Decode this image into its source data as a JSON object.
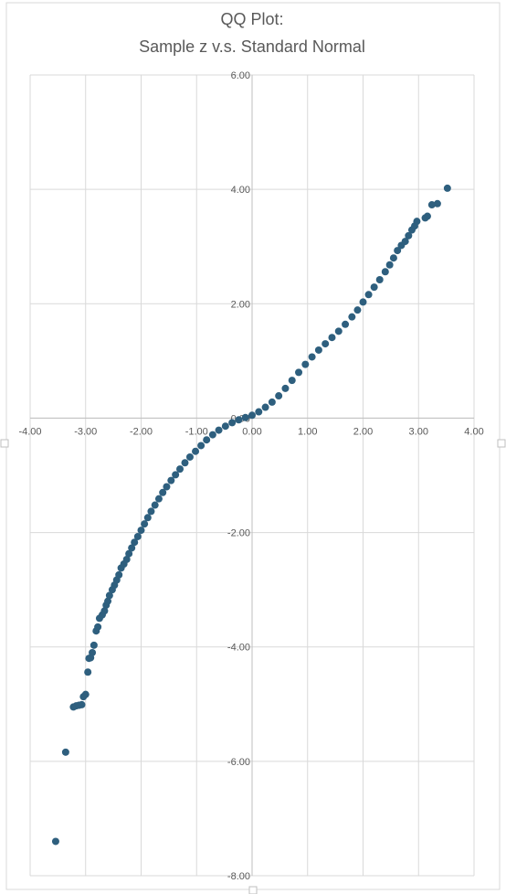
{
  "chart_data": {
    "type": "scatter",
    "title_lines": [
      "QQ Plot:",
      "Sample z v.s. Standard Normal"
    ],
    "xlabel": "",
    "ylabel": "",
    "xlim": [
      -4,
      4
    ],
    "ylim": [
      -8,
      6
    ],
    "x_ticks": [
      -4,
      -3,
      -2,
      -1,
      0,
      1,
      2,
      3,
      4
    ],
    "y_ticks": [
      -8,
      -6,
      -4,
      -2,
      0,
      2,
      4,
      6
    ],
    "x_tick_labels": [
      "-4.00",
      "-3.00",
      "-2.00",
      "-1.00",
      "0.00",
      "1.00",
      "2.00",
      "3.00",
      "4.00"
    ],
    "y_tick_labels": [
      "-8.00",
      "-6.00",
      "-4.00",
      "-2.00",
      "0.00",
      "2.00",
      "4.00",
      "6.00"
    ],
    "grid": true,
    "legend": "none",
    "series_color": "#2e5f7e",
    "points": [
      [
        -3.54,
        -7.4
      ],
      [
        -3.36,
        -5.84
      ],
      [
        -3.22,
        -5.05
      ],
      [
        -3.17,
        -5.03
      ],
      [
        -3.12,
        -5.02
      ],
      [
        -3.07,
        -5.01
      ],
      [
        -3.04,
        -4.87
      ],
      [
        -3.0,
        -4.83
      ],
      [
        -2.96,
        -4.44
      ],
      [
        -2.94,
        -4.2
      ],
      [
        -2.91,
        -4.19
      ],
      [
        -2.88,
        -4.1
      ],
      [
        -2.85,
        -3.97
      ],
      [
        -2.81,
        -3.72
      ],
      [
        -2.78,
        -3.65
      ],
      [
        -2.75,
        -3.5
      ],
      [
        -2.7,
        -3.44
      ],
      [
        -2.66,
        -3.37
      ],
      [
        -2.63,
        -3.27
      ],
      [
        -2.6,
        -3.2
      ],
      [
        -2.57,
        -3.1
      ],
      [
        -2.52,
        -3.0
      ],
      [
        -2.48,
        -2.92
      ],
      [
        -2.44,
        -2.83
      ],
      [
        -2.4,
        -2.74
      ],
      [
        -2.36,
        -2.62
      ],
      [
        -2.31,
        -2.55
      ],
      [
        -2.26,
        -2.47
      ],
      [
        -2.22,
        -2.37
      ],
      [
        -2.17,
        -2.27
      ],
      [
        -2.12,
        -2.17
      ],
      [
        -2.06,
        -2.07
      ],
      [
        -2.0,
        -1.96
      ],
      [
        -1.94,
        -1.85
      ],
      [
        -1.88,
        -1.74
      ],
      [
        -1.82,
        -1.63
      ],
      [
        -1.75,
        -1.52
      ],
      [
        -1.68,
        -1.41
      ],
      [
        -1.61,
        -1.3
      ],
      [
        -1.54,
        -1.2
      ],
      [
        -1.46,
        -1.09
      ],
      [
        -1.38,
        -0.99
      ],
      [
        -1.3,
        -0.89
      ],
      [
        -1.21,
        -0.78
      ],
      [
        -1.12,
        -0.68
      ],
      [
        -1.02,
        -0.58
      ],
      [
        -0.92,
        -0.48
      ],
      [
        -0.82,
        -0.38
      ],
      [
        -0.71,
        -0.29
      ],
      [
        -0.6,
        -0.21
      ],
      [
        -0.48,
        -0.14
      ],
      [
        -0.36,
        -0.08
      ],
      [
        -0.24,
        -0.03
      ],
      [
        -0.12,
        0.01
      ],
      [
        0.0,
        0.05
      ],
      [
        0.12,
        0.11
      ],
      [
        0.24,
        0.19
      ],
      [
        0.36,
        0.28
      ],
      [
        0.48,
        0.39
      ],
      [
        0.6,
        0.52
      ],
      [
        0.72,
        0.66
      ],
      [
        0.84,
        0.8
      ],
      [
        0.96,
        0.94
      ],
      [
        1.08,
        1.07
      ],
      [
        1.2,
        1.19
      ],
      [
        1.32,
        1.3
      ],
      [
        1.44,
        1.41
      ],
      [
        1.56,
        1.52
      ],
      [
        1.68,
        1.64
      ],
      [
        1.8,
        1.77
      ],
      [
        1.9,
        1.89
      ],
      [
        2.0,
        2.03
      ],
      [
        2.1,
        2.16
      ],
      [
        2.2,
        2.29
      ],
      [
        2.3,
        2.42
      ],
      [
        2.4,
        2.56
      ],
      [
        2.48,
        2.68
      ],
      [
        2.55,
        2.8
      ],
      [
        2.62,
        2.93
      ],
      [
        2.69,
        3.02
      ],
      [
        2.76,
        3.09
      ],
      [
        2.82,
        3.19
      ],
      [
        2.88,
        3.29
      ],
      [
        2.93,
        3.36
      ],
      [
        2.97,
        3.44
      ],
      [
        3.12,
        3.5
      ],
      [
        3.16,
        3.53
      ],
      [
        3.24,
        3.73
      ],
      [
        3.34,
        3.75
      ],
      [
        3.52,
        4.02
      ]
    ]
  }
}
